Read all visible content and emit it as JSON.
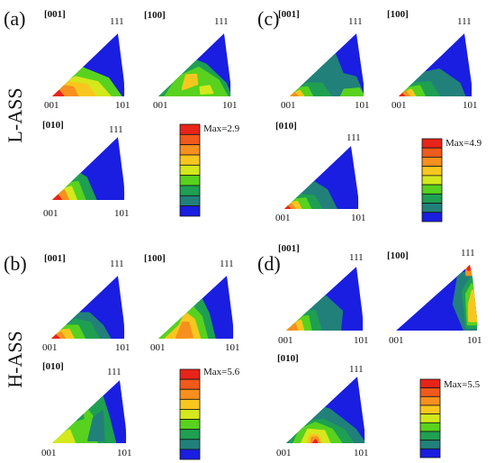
{
  "panels": [
    {
      "letter": "(a)",
      "row_label": "L-ASS",
      "max_label": "Max=2.9",
      "triangles": [
        {
          "dir": "[001]",
          "c111": "111",
          "c001": "001",
          "c101": "101"
        },
        {
          "dir": "[100]",
          "c111": "111",
          "c001": "001",
          "c101": "101"
        },
        {
          "dir": "[010]",
          "c111": "111",
          "c001": "001",
          "c101": "101"
        }
      ]
    },
    {
      "letter": "(c)",
      "row_label": "",
      "max_label": "Max=4.9",
      "triangles": [
        {
          "dir": "[001]",
          "c111": "111",
          "c001": "001",
          "c101": "101"
        },
        {
          "dir": "[100]",
          "c111": "111",
          "c001": "001",
          "c101": "101"
        },
        {
          "dir": "[010]",
          "c111": "111",
          "c001": "001",
          "c101": "101"
        }
      ]
    },
    {
      "letter": "(b)",
      "row_label": "H-ASS",
      "max_label": "Max=5.6",
      "triangles": [
        {
          "dir": "[001]",
          "c111": "111",
          "c001": "001",
          "c101": "101"
        },
        {
          "dir": "[100]",
          "c111": "111",
          "c001": "001",
          "c101": "101"
        },
        {
          "dir": "[010]",
          "c111": "111",
          "c001": "001",
          "c101": "101"
        }
      ]
    },
    {
      "letter": "(d)",
      "row_label": "",
      "max_label": "Max=5.5",
      "triangles": [
        {
          "dir": "[001]",
          "c111": "111",
          "c001": "001",
          "c101": "101"
        },
        {
          "dir": "[100]",
          "c111": "111",
          "c001": "001",
          "c101": "101"
        },
        {
          "dir": "[010]",
          "c111": "111",
          "c001": "001",
          "c101": "101"
        }
      ]
    }
  ],
  "colorbar_colors": [
    "#e8241a",
    "#f05a1c",
    "#f7901e",
    "#f8c71f",
    "#d4e81c",
    "#58d21e",
    "#1f9f52",
    "#22807a",
    "#1a1ee0"
  ],
  "colors": {
    "blue": "#1a1ee0",
    "teal": "#22807a",
    "green": "#1f9f52",
    "lime": "#58d21e",
    "yellow": "#d4e81c",
    "gold": "#f8c71f",
    "orange": "#f7901e",
    "redorange": "#f05a1c",
    "red": "#e8241a"
  }
}
